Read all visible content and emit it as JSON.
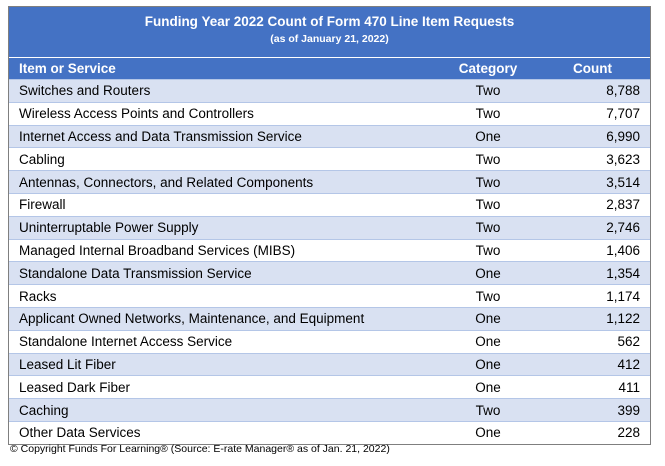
{
  "table": {
    "title": "Funding Year 2022 Count of Form 470 Line Item Requests",
    "subtitle": "(as of January 21, 2022)",
    "headers": {
      "item": "Item or Service",
      "category": "Category",
      "count": "Count"
    },
    "rows": [
      {
        "item": "Switches and Routers",
        "category": "Two",
        "count": "8,788"
      },
      {
        "item": "Wireless Access Points and Controllers",
        "category": "Two",
        "count": "7,707"
      },
      {
        "item": "Internet Access and Data Transmission Service",
        "category": "One",
        "count": "6,990"
      },
      {
        "item": "Cabling",
        "category": "Two",
        "count": "3,623"
      },
      {
        "item": "Antennas, Connectors, and Related Components",
        "category": "Two",
        "count": "3,514"
      },
      {
        "item": "Firewall",
        "category": "Two",
        "count": "2,837"
      },
      {
        "item": "Uninterruptable Power Supply",
        "category": "Two",
        "count": "2,746"
      },
      {
        "item": "Managed Internal Broadband Services (MIBS)",
        "category": "Two",
        "count": "1,406"
      },
      {
        "item": "Standalone Data Transmission Service",
        "category": "One",
        "count": "1,354"
      },
      {
        "item": "Racks",
        "category": "Two",
        "count": "1,174"
      },
      {
        "item": "Applicant Owned Networks, Maintenance, and Equipment",
        "category": "One",
        "count": "1,122"
      },
      {
        "item": "Standalone Internet Access Service",
        "category": "One",
        "count": "562"
      },
      {
        "item": "Leased Lit Fiber",
        "category": "One",
        "count": "412"
      },
      {
        "item": "Leased Dark Fiber",
        "category": "One",
        "count": "411"
      },
      {
        "item": "Caching",
        "category": "Two",
        "count": "399"
      },
      {
        "item": "Other Data Services",
        "category": "One",
        "count": "228"
      }
    ]
  },
  "footer": "© Copyright Funds For Learning® (Source: E-rate Manager® as of Jan. 21, 2022)",
  "colors": {
    "header_bg": "#4472c4",
    "band": "#d9e1f2",
    "rule": "#b4c6e7"
  }
}
